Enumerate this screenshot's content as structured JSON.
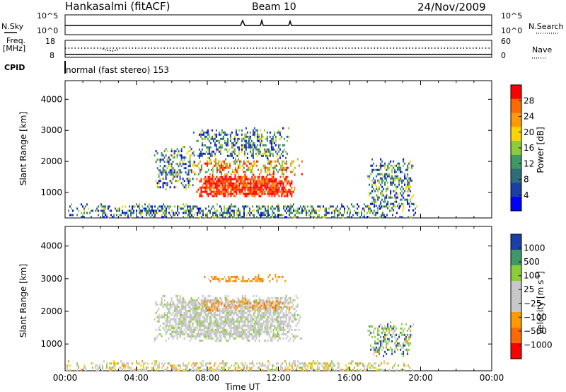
{
  "header": {
    "station": "Hankasalmi (fitACF)",
    "beam": "Beam 10",
    "date": "24/Nov/2009",
    "nsky_label": "N.Sky",
    "nsearch_label": "N.Search",
    "freq_label_1": "Freq.",
    "freq_label_2": "[MHz]",
    "nave_label": "Nave",
    "cpid_label": "CPID",
    "cpid_value": "normal (fast stereo) 153",
    "noise_ticks": [
      "10^5",
      "10^0"
    ],
    "freq_ticks": [
      "18",
      "8"
    ],
    "nave_ticks": [
      "60",
      "0"
    ]
  },
  "chart_data": [
    {
      "type": "heatmap",
      "name": "power",
      "ylabel": "Slant Range [km]",
      "yticks": [
        1000,
        2000,
        3000,
        4000
      ],
      "ylim": [
        180,
        4600
      ],
      "xlim": [
        0,
        24
      ],
      "xticks": [
        "00:00",
        "04:00",
        "08:00",
        "12:00",
        "16:00",
        "20:00",
        "00:00"
      ],
      "colorbar": {
        "label": "Power [dB]",
        "ticks": [
          "28",
          "24",
          "20",
          "16",
          "12",
          "8",
          "4"
        ],
        "colors": [
          "#ff0000",
          "#ff6a00",
          "#ff9a00",
          "#ffd400",
          "#8ccc3a",
          "#3d9966",
          "#2d6e7a",
          "#1a3fa8",
          "#0000ff"
        ]
      },
      "regions": [
        {
          "t0": 7.3,
          "t1": 12.9,
          "r0": 850,
          "r1": 1600,
          "level": "high"
        },
        {
          "t0": 7.0,
          "t1": 13.3,
          "r0": 1600,
          "r1": 2100,
          "level": "mid"
        },
        {
          "t0": 5.0,
          "t1": 7.3,
          "r0": 1100,
          "r1": 2500,
          "level": "low"
        },
        {
          "t0": 7.2,
          "t1": 12.6,
          "r0": 2100,
          "r1": 3100,
          "level": "low"
        },
        {
          "t0": 17.0,
          "t1": 19.6,
          "r0": 400,
          "r1": 2100,
          "level": "low"
        },
        {
          "t0": 0,
          "t1": 19.8,
          "r0": 180,
          "r1": 650,
          "level": "low"
        }
      ]
    },
    {
      "type": "heatmap",
      "name": "velocity",
      "ylabel": "Slant Range [km]",
      "yticks": [
        1000,
        2000,
        3000,
        4000
      ],
      "ylim": [
        180,
        4600
      ],
      "xlim": [
        0,
        24
      ],
      "xlabel": "Time UT",
      "xticks": [
        "00:00",
        "04:00",
        "08:00",
        "12:00",
        "16:00",
        "20:00",
        "00:00"
      ],
      "colorbar": {
        "label": "Velocity [m s^-1]",
        "ticks": [
          "1000",
          "500",
          "100",
          "25",
          "−25",
          "−100",
          "−500",
          "−1000"
        ],
        "colors": [
          "#1a3fa8",
          "#3d9966",
          "#8ccc3a",
          "#c8c8c8",
          "#c8c8c8",
          "#ff9a00",
          "#ff6a00",
          "#ff0000"
        ]
      },
      "regions": [
        {
          "t0": 5.0,
          "t1": 13.3,
          "r0": 1100,
          "r1": 2500,
          "level": "gray"
        },
        {
          "t0": 7.5,
          "t1": 12.7,
          "r0": 2050,
          "r1": 2400,
          "level": "orange"
        },
        {
          "t0": 7.5,
          "t1": 12.4,
          "r0": 2900,
          "r1": 3150,
          "level": "orange"
        },
        {
          "t0": 17.0,
          "t1": 19.6,
          "r0": 600,
          "r1": 1700,
          "level": "green"
        },
        {
          "t0": 0,
          "t1": 19.8,
          "r0": 180,
          "r1": 500,
          "level": "mixed"
        }
      ]
    }
  ]
}
